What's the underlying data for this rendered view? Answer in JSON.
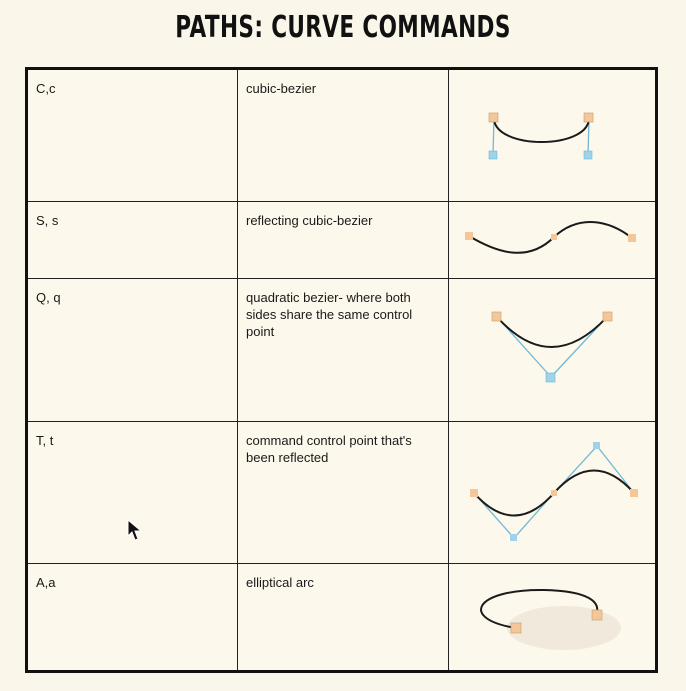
{
  "title": "PATHS: CURVE COMMANDS",
  "rows": [
    {
      "command": "C,c",
      "description": "cubic-bezier",
      "icon": "cubic-bezier-diagram"
    },
    {
      "command": "S, s",
      "description": "reflecting cubic-bezier",
      "icon": "reflecting-cubic-bezier-diagram"
    },
    {
      "command": "Q, q",
      "description": "quadratic bezier- where both sides share the same control point",
      "icon": "quadratic-bezier-diagram"
    },
    {
      "command": "T, t",
      "description": "command control point that's been reflected",
      "icon": "smooth-quadratic-diagram"
    },
    {
      "command": "A,a",
      "description": "elliptical arc",
      "icon": "elliptical-arc-diagram"
    }
  ],
  "colors": {
    "endpoint": "#f3c79a",
    "control_point": "#9fd3ec",
    "control_line": "#6fb9d6",
    "curve": "#1a1a1a"
  }
}
